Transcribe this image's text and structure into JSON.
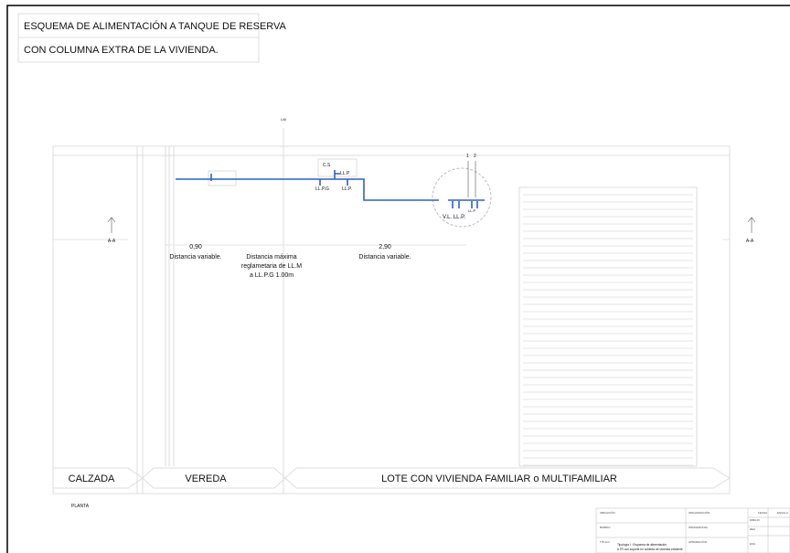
{
  "header": {
    "title_lines": [
      "ESQUEMA DE ALIMENTACIÓN A TANQUE DE RESERVA",
      "CON COLUMNA EXTRA DE LA VIVIENDA."
    ]
  },
  "plan": {
    "line_label": "LM",
    "fittings": [
      "C.S",
      "LL.P",
      "LL.P.G",
      "LL.P.",
      "1",
      "2",
      "LL.P",
      "V.L. LL.P."
    ],
    "section_marks": [
      "A-A",
      "A-A"
    ],
    "dimensions": [
      {
        "value": "0,90",
        "note": "Distancia variable."
      },
      {
        "value": "2,90",
        "note": "Distancia variable."
      }
    ],
    "regulation_note": [
      "Distancia máxima",
      "reglametaria de LL.M",
      "a LL.P.G 1.00m"
    ],
    "zones": [
      "CALZADA",
      "VEREDA",
      "LOTE CON VIVIENDA FAMILIAR o MULTIFAMILIAR"
    ],
    "view_name": "PLANTA"
  },
  "title_block": {
    "fields": [
      "UBICACIÓN",
      "ORGANIZACIÓN",
      "FECHA",
      "ESCALA",
      "DIBUJO",
      "BARRIO",
      "PROFESIONAL",
      "REV.",
      "TÍTULO",
      "APROBACIÓN",
      "ESC."
    ],
    "title_text": [
      "Tipología I : Esquema de alimentación",
      "a TR con soporte en cubierta de vivienda existente"
    ]
  }
}
